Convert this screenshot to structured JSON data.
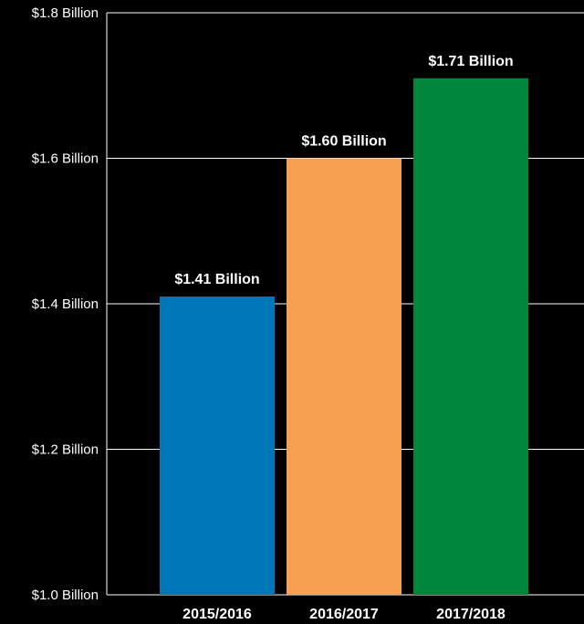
{
  "chart_data": {
    "type": "bar",
    "title": "",
    "xlabel": "",
    "ylabel": "",
    "categories": [
      "2015/2016",
      "2016/2017",
      "2017/2018"
    ],
    "values": [
      1.41,
      1.6,
      1.71
    ],
    "value_labels": [
      "$1.41 Billion",
      "$1.60 Billion",
      "$1.71 Billion"
    ],
    "bar_colors": [
      "#0077b6",
      "#f7a051",
      "#00873d"
    ],
    "ylim": [
      1.0,
      1.8
    ],
    "yticks": [
      1.0,
      1.2,
      1.4,
      1.6,
      1.8
    ],
    "ytick_labels": [
      "$1.0 Billion",
      "$1.2 Billion",
      "$1.4 Billion",
      "$1.6 Billion",
      "$1.8 Billion"
    ],
    "grid": true,
    "legend": "none"
  }
}
